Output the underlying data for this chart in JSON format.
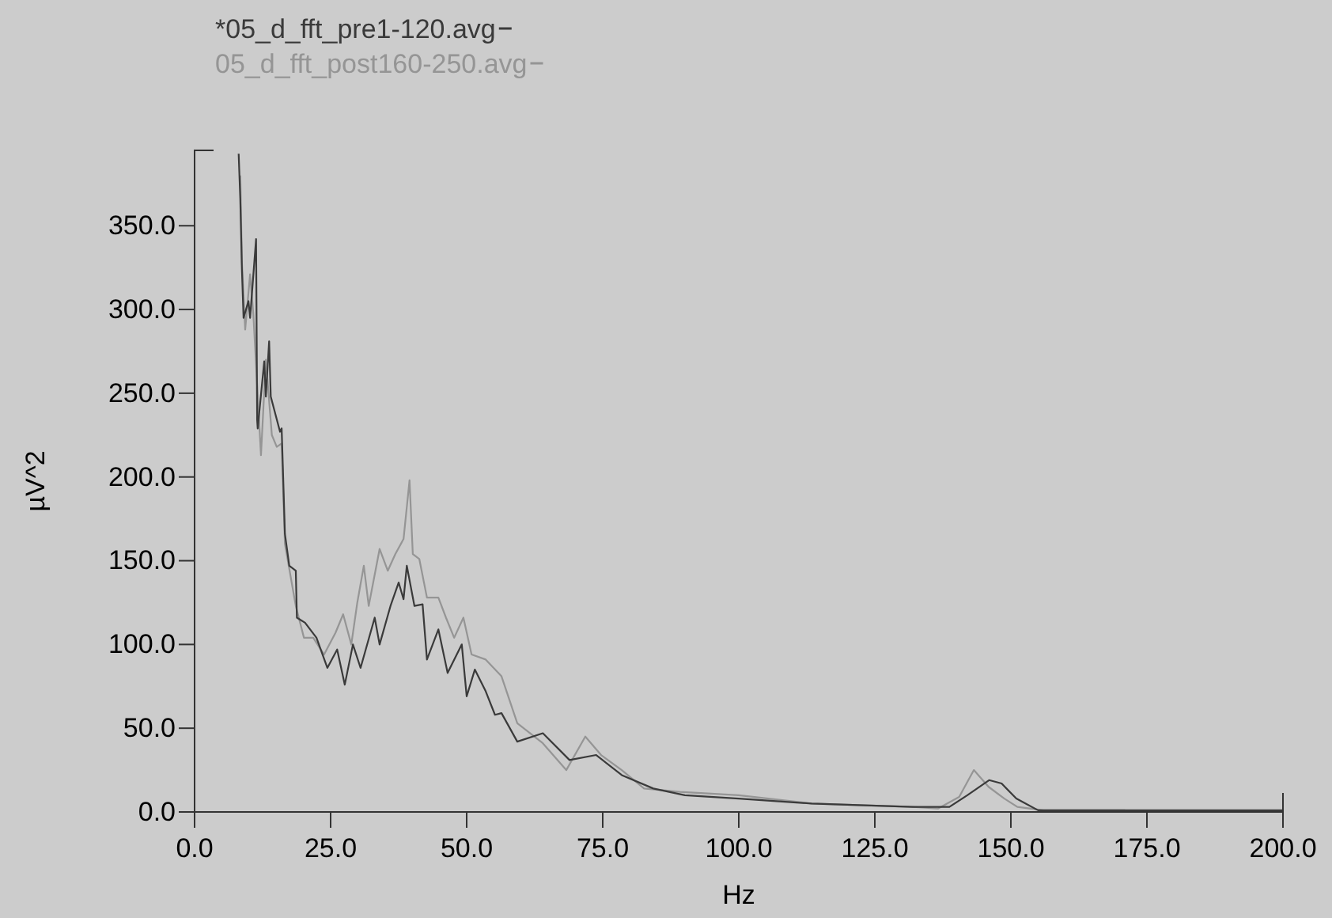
{
  "chart_data": {
    "type": "line",
    "xlabel": "Hz",
    "ylabel": "µV^2",
    "xlim": [
      0,
      200
    ],
    "ylim": [
      0,
      395
    ],
    "xticks": [
      {
        "value": 0,
        "label": "0.0"
      },
      {
        "value": 25,
        "label": "25.0"
      },
      {
        "value": 50,
        "label": "50.0"
      },
      {
        "value": 75,
        "label": "75.0"
      },
      {
        "value": 100,
        "label": "100.0"
      },
      {
        "value": 125,
        "label": "125.0"
      },
      {
        "value": 150,
        "label": "150.0"
      },
      {
        "value": 175,
        "label": "175.0"
      },
      {
        "value": 200,
        "label": "200.0"
      }
    ],
    "yticks": [
      {
        "value": 0,
        "label": "0.0"
      },
      {
        "value": 50,
        "label": "50.0"
      },
      {
        "value": 100,
        "label": "100.0"
      },
      {
        "value": 150,
        "label": "150.0"
      },
      {
        "value": 200,
        "label": "200.0"
      },
      {
        "value": 250,
        "label": "250.0"
      },
      {
        "value": 300,
        "label": "300.0"
      },
      {
        "value": 350,
        "label": "350.0"
      }
    ],
    "grid": false,
    "legend": "top left",
    "marker": "none",
    "line_style": "solid",
    "series": [
      {
        "name": "05_d_fft_post160-250.avg",
        "color": "#959595",
        "x": [
          8.4,
          8.7,
          9.3,
          10.2,
          10.8,
          12.2,
          13.1,
          14.2,
          15.1,
          16.0,
          16.6,
          18.6,
          20.1,
          21.8,
          23.8,
          25.9,
          27.3,
          28.8,
          29.9,
          31.1,
          32.0,
          34.0,
          35.5,
          36.9,
          38.4,
          39.5,
          40.1,
          41.3,
          42.7,
          44.8,
          46.2,
          47.7,
          49.4,
          50.9,
          53.5,
          56.4,
          59.3,
          64.0,
          68.3,
          71.8,
          74.7,
          78.5,
          82.6,
          89.2,
          100,
          113.4,
          132,
          136.6,
          140.5,
          143.2,
          145.9,
          148.8,
          151.2,
          156,
          171
        ],
        "values": [
          380,
          328,
          288,
          321,
          297,
          213,
          270,
          225,
          218,
          220,
          160,
          123,
          104,
          104,
          94,
          107,
          118,
          100,
          125,
          147,
          123,
          157,
          144,
          154,
          163,
          198,
          154,
          151,
          128,
          128,
          116,
          104,
          116,
          94,
          91,
          81,
          53,
          41,
          25,
          45,
          34,
          25,
          14,
          12,
          10,
          5,
          3,
          2,
          9,
          25,
          15,
          8,
          3,
          1,
          1
        ]
      },
      {
        "name": "*05_d_fft_pre1-120.avg",
        "color": "#3a3a3a",
        "x": [
          8.1,
          8.4,
          8.7,
          9.0,
          9.9,
          10.2,
          11.3,
          11.5,
          11.6,
          12.8,
          13.1,
          13.7,
          14.0,
          15.7,
          16.0,
          16.6,
          17.4,
          18.6,
          18.8,
          20.3,
          22.4,
          24.4,
          26.2,
          27.6,
          29.1,
          30.5,
          33.1,
          34.0,
          36.0,
          37.5,
          38.4,
          39.0,
          40.4,
          41.9,
          42.7,
          44.8,
          46.5,
          49.1,
          50.0,
          51.5,
          53.5,
          55.2,
          56.4,
          59.3,
          64.0,
          68.9,
          73.8,
          78.5,
          84.3,
          90.1,
          100,
          113.4,
          132,
          138.7,
          142,
          146,
          148.3,
          151,
          155,
          168,
          200
        ],
        "values": [
          393,
          366,
          324,
          295,
          305,
          295,
          342,
          234,
          229,
          269,
          248,
          281,
          248,
          227,
          229,
          166,
          147,
          144,
          116,
          113,
          104,
          86,
          97,
          76,
          100,
          86,
          116,
          100,
          123,
          137,
          127,
          147,
          123,
          124,
          91,
          109,
          83,
          100,
          69,
          85,
          72,
          58,
          59,
          42,
          47,
          31,
          34,
          22,
          14,
          10,
          8,
          5,
          3,
          3,
          10,
          19,
          17,
          8,
          1,
          1,
          1
        ]
      }
    ]
  }
}
